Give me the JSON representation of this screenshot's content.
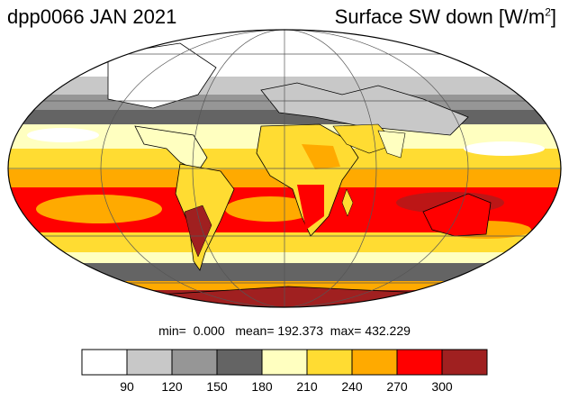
{
  "title_left": "dpp0066 JAN 2021",
  "title_right": {
    "text": "Surface SW down [W/m",
    "sup": "2",
    "close": "]"
  },
  "stats": {
    "min_label": "min=",
    "min_value": "0.000",
    "mean_label": "mean=",
    "mean_value": "192.373",
    "max_label": "max=",
    "max_value": "432.229"
  },
  "colorbar": {
    "colors": [
      "#ffffff",
      "#c8c8c8",
      "#969696",
      "#646464",
      "#ffffc0",
      "#ffdc32",
      "#ffaa00",
      "#ff0000",
      "#a02020"
    ],
    "tick_labels": [
      "90",
      "120",
      "150",
      "180",
      "210",
      "240",
      "270",
      "300"
    ]
  },
  "map": {
    "projection": "mollweide",
    "ocean_bands_colors": {
      "arctic": "#ffffff",
      "north_high": "#969696",
      "north_mid": "#646464",
      "north_sub": "#ffffc0",
      "tropics": "#ffdc32",
      "south_sub": "#ff0000",
      "south_mid": "#ffaa00",
      "south_high": "#646464",
      "antarctic": "#a02020"
    }
  }
}
